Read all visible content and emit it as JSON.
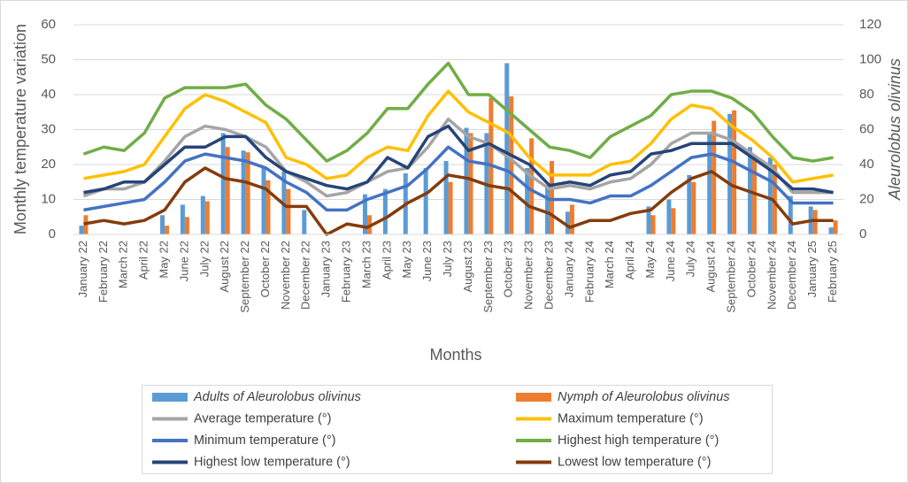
{
  "chart_data": {
    "type": "combo",
    "y_label": "Monthly temperature variation",
    "y2_label": "Aleurolobus olivinus",
    "x_label": "Months",
    "categories": [
      "January 22",
      "February 22",
      "March 22",
      "April 22",
      "May 22",
      "June 22",
      "July 22",
      "August 22",
      "September 22",
      "October 22",
      "November 22",
      "December 22",
      "January 23",
      "February 23",
      "March 23",
      "April 23",
      "May 23",
      "June 23",
      "July 23",
      "August 23",
      "September 23",
      "October 23",
      "November 23",
      "December 23",
      "January 24",
      "February 24",
      "March 24",
      "April 24",
      "May 24",
      "June 24",
      "July 24",
      "August 24",
      "September 24",
      "October 24",
      "November 24",
      "December 24",
      "January 25",
      "February 25"
    ],
    "ylim": [
      0,
      60
    ],
    "yticks": [
      0,
      10,
      20,
      30,
      40,
      50,
      60
    ],
    "y2lim": [
      0,
      120
    ],
    "y2ticks": [
      0,
      20,
      40,
      60,
      80,
      100,
      120
    ],
    "grid": true,
    "legend": "bottom",
    "series": [
      {
        "name": "Adults of Aleurolobus olivinus",
        "type": "bar",
        "axis": "y2",
        "italic": true,
        "color": "#5b9bd5",
        "values": [
          5,
          0,
          0,
          0,
          11,
          17,
          22,
          58,
          48,
          38,
          36,
          14,
          0,
          0,
          23,
          26,
          35,
          38,
          42,
          61,
          58,
          98,
          38,
          28,
          13,
          0,
          0,
          0,
          16,
          20,
          34,
          58,
          69,
          50,
          44,
          22,
          16,
          4
        ]
      },
      {
        "name": "Nymph of Aleurolobus olivinus",
        "type": "bar",
        "axis": "y2",
        "italic": true,
        "color": "#ed7d31",
        "values": [
          11,
          0,
          0,
          0,
          5,
          10,
          19,
          50,
          47,
          31,
          26,
          0,
          0,
          0,
          11,
          0,
          0,
          0,
          30,
          58,
          78,
          79,
          55,
          42,
          17,
          0,
          0,
          0,
          11,
          15,
          30,
          65,
          71,
          45,
          40,
          0,
          14,
          8
        ]
      },
      {
        "name": "Average temperature (°)",
        "type": "line",
        "color": "#a5a5a5",
        "values": [
          11,
          13,
          13,
          15,
          21,
          28,
          31,
          30,
          28,
          25,
          18,
          15,
          11,
          12,
          15,
          18,
          19,
          25,
          33,
          28,
          26,
          22,
          17,
          13,
          14,
          13,
          15,
          16,
          20,
          26,
          29,
          29,
          27,
          23,
          19,
          12,
          12,
          12
        ]
      },
      {
        "name": "Maximum temperature (°)",
        "type": "line",
        "color": "#ffc000",
        "values": [
          16,
          17,
          18,
          20,
          28,
          36,
          40,
          38,
          35,
          32,
          22,
          20,
          16,
          17,
          22,
          25,
          24,
          34,
          41,
          35,
          32,
          29,
          22,
          17,
          17,
          17,
          20,
          21,
          26,
          33,
          37,
          36,
          31,
          27,
          22,
          15,
          16,
          17
        ]
      },
      {
        "name": "Minimum temperature (°)",
        "type": "line",
        "color": "#4472c4",
        "values": [
          7,
          8,
          9,
          10,
          15,
          21,
          23,
          22,
          21,
          19,
          15,
          12,
          7,
          7,
          10,
          12,
          14,
          19,
          25,
          21,
          20,
          18,
          13,
          10,
          10,
          9,
          11,
          11,
          14,
          18,
          22,
          23,
          21,
          18,
          15,
          9,
          9,
          9
        ]
      },
      {
        "name": "Highest high temperature (°)",
        "type": "line",
        "color": "#70ad47",
        "values": [
          23,
          25,
          24,
          29,
          39,
          42,
          42,
          42,
          43,
          37,
          33,
          27,
          21,
          24,
          29,
          36,
          36,
          43,
          49,
          40,
          40,
          35,
          30,
          25,
          24,
          22,
          28,
          31,
          34,
          40,
          41,
          41,
          39,
          35,
          28,
          22,
          21,
          22
        ]
      },
      {
        "name": "Highest low temperature (°)",
        "type": "line",
        "color": "#264478",
        "values": [
          12,
          13,
          15,
          15,
          20,
          25,
          25,
          28,
          28,
          22,
          18,
          16,
          14,
          13,
          15,
          22,
          19,
          28,
          31,
          24,
          26,
          23,
          20,
          14,
          15,
          14,
          17,
          18,
          23,
          24,
          26,
          26,
          26,
          22,
          18,
          13,
          13,
          12
        ]
      },
      {
        "name": "Lowest low temperature (°)",
        "type": "line",
        "color": "#843c0c",
        "values": [
          3,
          4,
          3,
          4,
          7,
          15,
          19,
          16,
          15,
          13,
          8,
          8,
          0,
          3,
          2,
          5,
          9,
          12,
          17,
          16,
          14,
          13,
          8,
          6,
          2,
          4,
          4,
          6,
          7,
          12,
          16,
          18,
          14,
          12,
          10,
          3,
          4,
          4
        ]
      }
    ]
  }
}
